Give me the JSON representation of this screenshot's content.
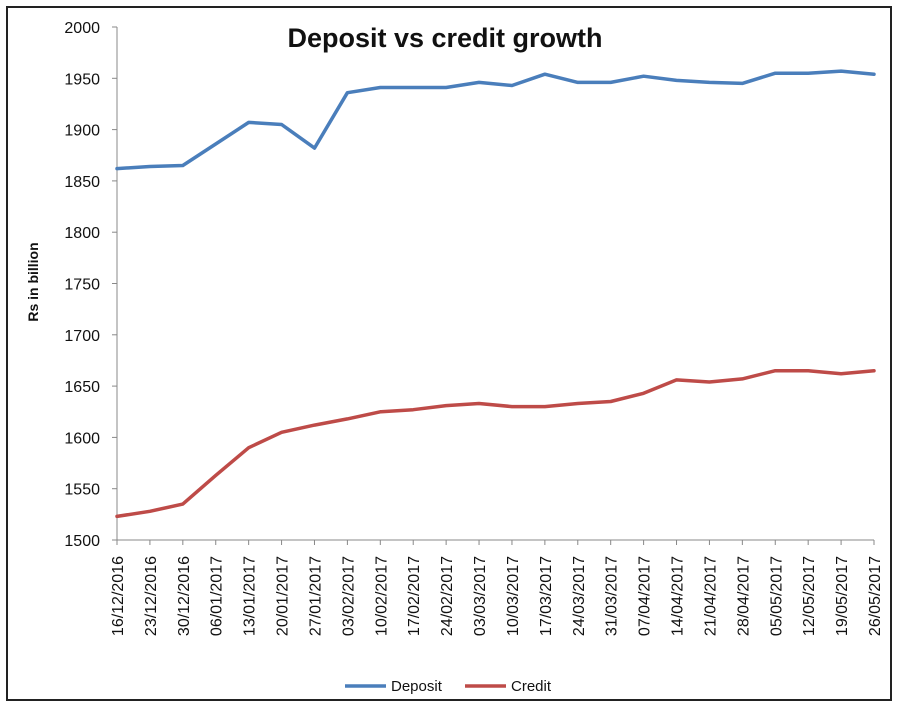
{
  "chart_data": {
    "type": "line",
    "title": "Deposit vs credit growth",
    "xlabel": "",
    "ylabel": "Rs in billion",
    "ylim": [
      1500,
      2000
    ],
    "yticks": [
      1500,
      1550,
      1600,
      1650,
      1700,
      1750,
      1800,
      1850,
      1900,
      1950,
      2000
    ],
    "grid": false,
    "legend_position": "bottom",
    "categories": [
      "16/12/2016",
      "23/12/2016",
      "30/12/2016",
      "06/01/2017",
      "13/01/2017",
      "20/01/2017",
      "27/01/2017",
      "03/02/2017",
      "10/02/2017",
      "17/02/2017",
      "24/02/2017",
      "03/03/2017",
      "10/03/2017",
      "17/03/2017",
      "24/03/2017",
      "31/03/2017",
      "07/04/2017",
      "14/04/2017",
      "21/04/2017",
      "28/04/2017",
      "05/05/2017",
      "12/05/2017",
      "19/05/2017",
      "26/05/2017"
    ],
    "series": [
      {
        "name": "Deposit",
        "color": "#4a7ebb",
        "values": [
          1862,
          1864,
          1865,
          1886,
          1907,
          1905,
          1882,
          1936,
          1941,
          1941,
          1941,
          1946,
          1943,
          1954,
          1946,
          1946,
          1952,
          1948,
          1946,
          1945,
          1955,
          1955,
          1957,
          1954
        ]
      },
      {
        "name": "Credit",
        "color": "#be4b48",
        "values": [
          1523,
          1528,
          1535,
          1563,
          1590,
          1605,
          1612,
          1618,
          1625,
          1627,
          1631,
          1633,
          1630,
          1630,
          1633,
          1635,
          1643,
          1656,
          1654,
          1657,
          1665,
          1665,
          1662,
          1665
        ]
      }
    ]
  }
}
